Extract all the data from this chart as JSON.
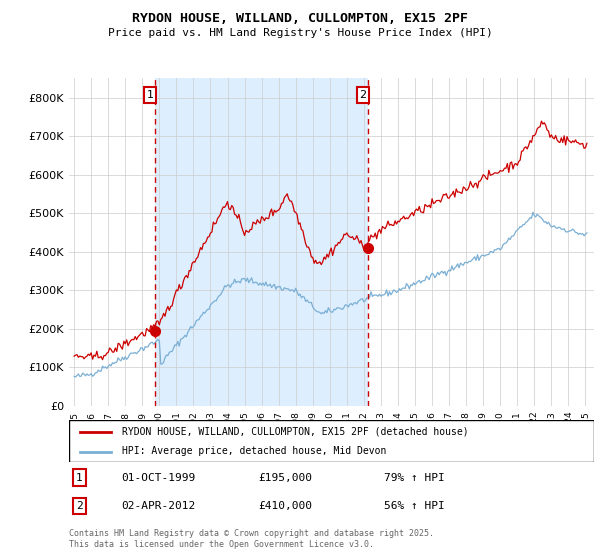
{
  "title": "RYDON HOUSE, WILLAND, CULLOMPTON, EX15 2PF",
  "subtitle": "Price paid vs. HM Land Registry's House Price Index (HPI)",
  "legend_line1": "RYDON HOUSE, WILLAND, CULLOMPTON, EX15 2PF (detached house)",
  "legend_line2": "HPI: Average price, detached house, Mid Devon",
  "footer": "Contains HM Land Registry data © Crown copyright and database right 2025.\nThis data is licensed under the Open Government Licence v3.0.",
  "sale1_date": "01-OCT-1999",
  "sale1_price": 195000,
  "sale1_label": "79% ↑ HPI",
  "sale2_date": "02-APR-2012",
  "sale2_price": 410000,
  "sale2_label": "56% ↑ HPI",
  "red_color": "#cc0000",
  "blue_color": "#7bafd4",
  "shade_color": "#ddeeff",
  "grid_color": "#cccccc",
  "background_color": "#ffffff",
  "ylim": [
    0,
    850000
  ],
  "yticks": [
    0,
    100000,
    200000,
    300000,
    400000,
    500000,
    600000,
    700000,
    800000
  ],
  "ytick_labels": [
    "£0",
    "£100K",
    "£200K",
    "£300K",
    "£400K",
    "£500K",
    "£600K",
    "£700K",
    "£800K"
  ],
  "sale1_x": 1999.75,
  "sale2_x": 2012.25,
  "xlim_left": 1994.7,
  "xlim_right": 2025.5
}
